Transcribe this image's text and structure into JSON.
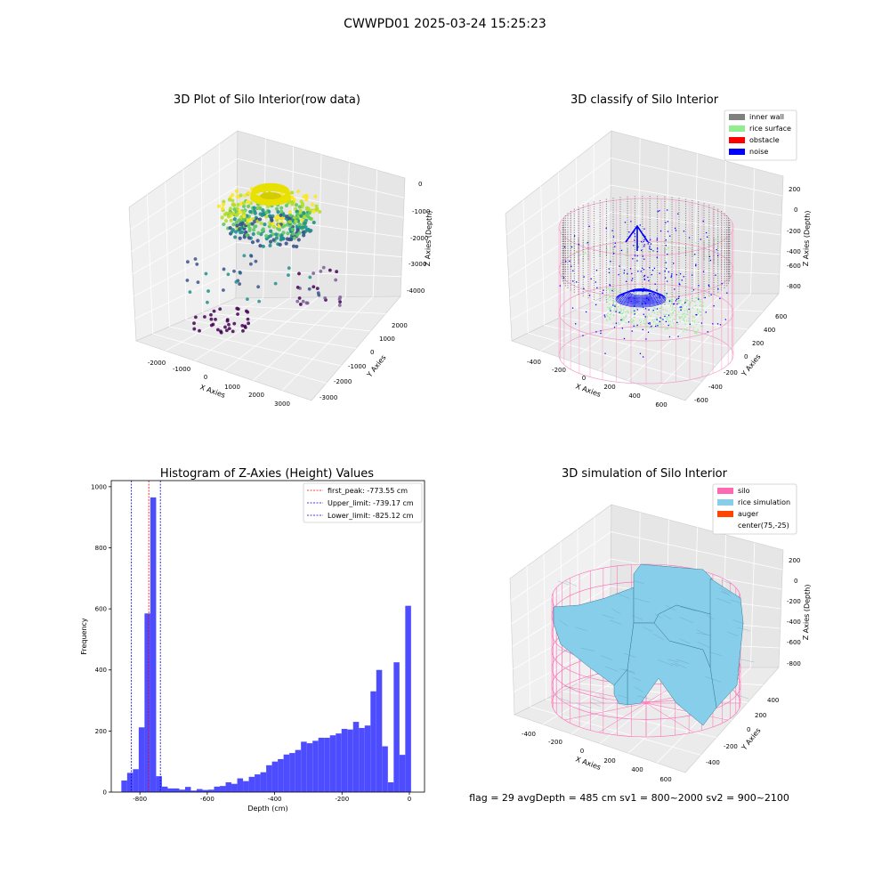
{
  "suptitle": "CWWPD01 2025-03-24 15:25:23",
  "bottom_text": "flag = 29  avgDepth = 485 cm  sv1 = 800~2000  sv2 = 900~2100",
  "colors": {
    "hist_bar": "#4d4dff",
    "first_peak_line": "#ff0000",
    "limit_line": "#0000cc",
    "inner_wall": "#808080",
    "rice_surface": "#90ee90",
    "obstacle": "#ff0000",
    "noise": "#0000ff",
    "silo": "#ff69b4",
    "rice_simulation": "#87ceeb",
    "auger": "#ff4500"
  },
  "chart_data": [
    {
      "type": "scatter",
      "subtype": "3d",
      "title": "3D Plot of Silo Interior(row data)",
      "xlabel": "X Axies",
      "ylabel": "Y Axies",
      "zlabel": "Z Axies (Depth)",
      "x_ticks": [
        "-2000",
        "-1000",
        "0",
        "1000",
        "2000",
        "3000"
      ],
      "y_ticks": [
        "-3000",
        "-2000",
        "-1000",
        "0",
        "1000",
        "2000"
      ],
      "z_ticks": [
        "0",
        "-1000",
        "-2000",
        "-3000",
        "-4000"
      ],
      "xlim": [
        -2500,
        3500
      ],
      "ylim": [
        -3500,
        2500
      ],
      "zlim": [
        -4500,
        200
      ],
      "colormap": "viridis",
      "grid": true
    },
    {
      "type": "scatter",
      "subtype": "3d",
      "title": "3D classify of Silo Interior",
      "xlabel": "X Axies",
      "ylabel": "Y Axies",
      "zlabel": "Z Axies (Depth)",
      "x_ticks": [
        "-400",
        "-200",
        "0",
        "200",
        "400",
        "600"
      ],
      "y_ticks": [
        "-600",
        "-400",
        "-200",
        "0",
        "200",
        "400",
        "600"
      ],
      "z_ticks": [
        "200",
        "0",
        "-200",
        "-400",
        "-600",
        "-800"
      ],
      "legend": [
        "inner wall",
        "rice surface",
        "obstacle",
        "noise"
      ],
      "legend_position": "top-right",
      "grid": true
    },
    {
      "type": "bar",
      "subtype": "histogram",
      "title": "Histogram of Z-Axies (Height) Values",
      "xlabel": "Depth (cm)",
      "ylabel": "Frequency",
      "x_ticks": [
        "-800",
        "-600",
        "-400",
        "-200",
        "0"
      ],
      "y_ticks": [
        "0",
        "200",
        "400",
        "600",
        "800",
        "1000"
      ],
      "xlim": [
        -885,
        45
      ],
      "ylim": [
        0,
        1020
      ],
      "bin_width": 17.2,
      "bin_start": -855,
      "values": [
        38,
        63,
        75,
        212,
        585,
        965,
        52,
        18,
        12,
        12,
        8,
        17,
        5,
        10,
        7,
        8,
        18,
        20,
        32,
        27,
        45,
        36,
        50,
        58,
        65,
        88,
        100,
        108,
        123,
        128,
        138,
        165,
        160,
        168,
        178,
        178,
        186,
        192,
        207,
        205,
        230,
        210,
        218,
        330,
        400,
        150,
        32,
        425,
        122,
        610
      ],
      "vlines": [
        {
          "label": "first_peak: -773.55 cm",
          "x": -773.55,
          "style": "dashed",
          "color": "red"
        },
        {
          "label": "Upper_limit: -739.17 cm",
          "x": -739.17,
          "style": "dashed",
          "color": "blue"
        },
        {
          "label": "Lower_limit: -825.12 cm",
          "x": -825.12,
          "style": "dashed",
          "color": "blue"
        }
      ],
      "legend_position": "top-right",
      "grid": false
    },
    {
      "type": "area",
      "subtype": "3d-surface",
      "title": "3D simulation of Silo Interior",
      "xlabel": "X Axies",
      "ylabel": "Y Axies",
      "zlabel": "Z Axies (Depth)",
      "x_ticks": [
        "-400",
        "-200",
        "0",
        "200",
        "400",
        "600"
      ],
      "y_ticks": [
        "-400",
        "-200",
        "0",
        "200",
        "400"
      ],
      "z_ticks": [
        "200",
        "0",
        "-200",
        "-400",
        "-600",
        "-800"
      ],
      "legend": [
        "silo",
        "rice simulation",
        "auger",
        "center(75,-25)"
      ],
      "legend_position": "top-right",
      "grid": true
    }
  ]
}
